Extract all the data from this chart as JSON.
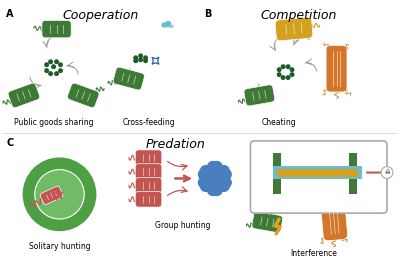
{
  "bg_color": "#ffffff",
  "section_A": "Cooperation",
  "section_B": "Competition",
  "section_C": "Predation",
  "label_A": "A",
  "label_B": "B",
  "label_C": "C",
  "cap_public": "Public goods sharing",
  "cap_cross": "Cross-feeding",
  "cap_cheat": "Cheating",
  "cap_solitary": "Solitary hunting",
  "cap_group": "Group hunting",
  "cap_interf": "Interference",
  "col_green_dark": "#3d7a35",
  "col_green_med": "#4e9e44",
  "col_green_light": "#72bb66",
  "col_green_dot": "#1e5c27",
  "col_blue_bact": "#6abcd4",
  "col_blue_arrow": "#2a5cb8",
  "col_yellow": "#d4a020",
  "col_orange": "#d4762a",
  "col_red": "#c25550",
  "col_red_light": "#d87070",
  "col_blue_cluster": "#4a7fbf",
  "col_grey_arrow": "#999999",
  "col_box_border": "#aaaaaa"
}
